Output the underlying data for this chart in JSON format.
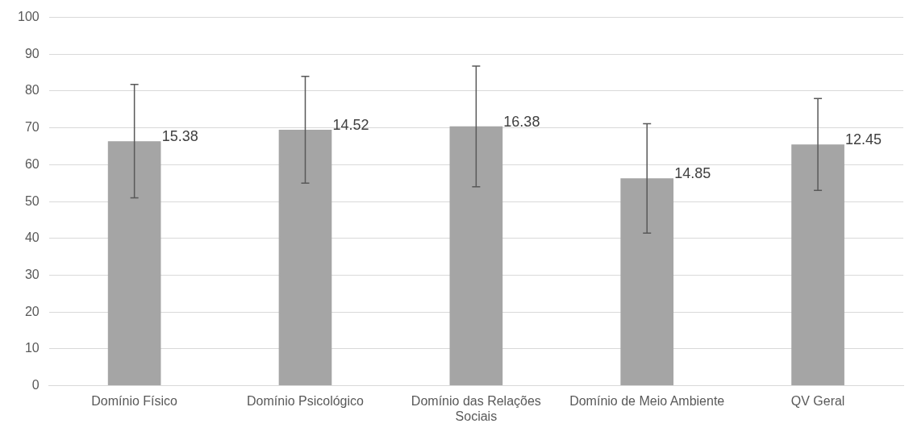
{
  "chart_data": {
    "type": "bar",
    "categories": [
      "Domínio Físico",
      "Domínio Psicológico",
      "Domínio das Relações Sociais",
      "Domínio de Meio Ambiente",
      "QV Geral"
    ],
    "values": [
      66.4,
      69.5,
      70.4,
      56.3,
      65.5
    ],
    "errors": [
      15.38,
      14.52,
      16.38,
      14.85,
      12.45
    ],
    "annotations": [
      {
        "text": "15.38",
        "x": "Domínio Físico",
        "y": 66.4
      },
      {
        "text": "14.52",
        "x": "Domínio Psicológico",
        "y": 69.5
      },
      {
        "text": "16.38",
        "x": "Domínio das Relações Sociais",
        "y": 70.4
      },
      {
        "text": "14.85",
        "x": "Domínio de Meio Ambiente",
        "y": 56.3
      },
      {
        "text": "12.45",
        "x": "QV Geral",
        "y": 65.5
      }
    ],
    "color": "#a5a5a5",
    "ylim": [
      0,
      100
    ],
    "yticks": [
      0,
      10,
      20,
      30,
      40,
      50,
      60,
      70,
      80,
      90,
      100
    ],
    "grid": "y",
    "legend": false
  }
}
